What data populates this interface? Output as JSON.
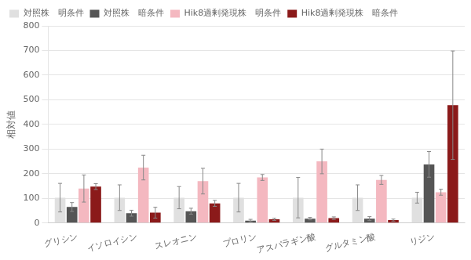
{
  "chart_data": {
    "type": "bar",
    "categories": [
      "グリシン",
      "イソロイシン",
      "スレオニン",
      "プロリン",
      "アスパラギン酸",
      "グルタミン酸",
      "リジン"
    ],
    "series": [
      {
        "name": "対照株　明条件",
        "color": "#e0e0e0",
        "values": [
          103,
          103,
          103,
          103,
          103,
          103,
          103
        ],
        "errors": [
          58,
          52,
          45,
          58,
          82,
          52,
          22
        ]
      },
      {
        "name": "対照株　暗条件",
        "color": "#555555",
        "values": [
          65,
          40,
          48,
          10,
          18,
          18,
          238
        ],
        "errors": [
          18,
          12,
          12,
          5,
          5,
          8,
          52
        ]
      },
      {
        "name": "Hik8過剰発現株　明条件",
        "color": "#f4b8c0",
        "values": [
          140,
          225,
          170,
          185,
          250,
          175,
          125
        ],
        "errors": [
          55,
          50,
          52,
          12,
          50,
          18,
          12
        ]
      },
      {
        "name": "Hik8過剰発現株　暗条件",
        "color": "#8b1a1a",
        "values": [
          148,
          42,
          80,
          15,
          20,
          12,
          478
        ],
        "errors": [
          12,
          22,
          12,
          4,
          5,
          4,
          220
        ]
      }
    ],
    "ylabel": "相対値",
    "ylim": [
      0,
      800
    ],
    "yticks": [
      0,
      100,
      200,
      300,
      400,
      500,
      600,
      700,
      800
    ],
    "grid": true,
    "legend": "upper left"
  }
}
